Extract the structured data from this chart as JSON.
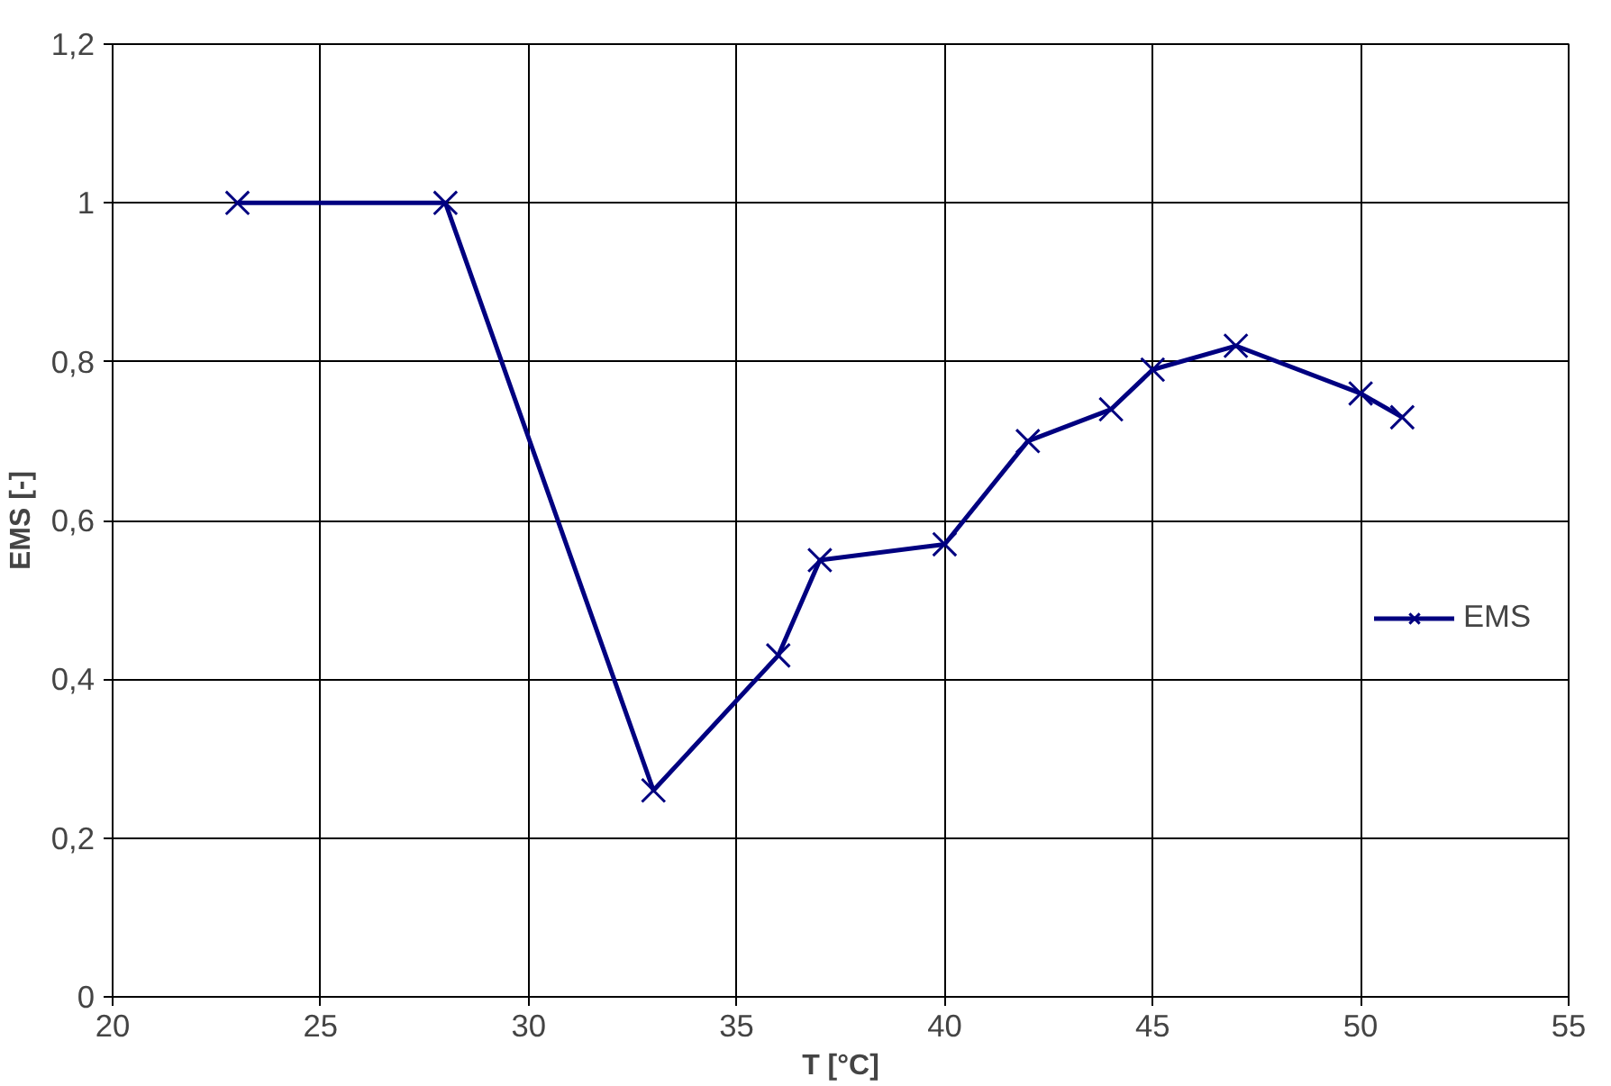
{
  "chart_data": {
    "type": "line",
    "xlabel": "T [°C]",
    "ylabel": "EMS [-]",
    "x": [
      23,
      28,
      33,
      36,
      37,
      40,
      42,
      44,
      45,
      47,
      50,
      51
    ],
    "series": [
      {
        "name": "EMS",
        "color": "#000080",
        "values": [
          1.0,
          1.0,
          0.26,
          0.43,
          0.55,
          0.57,
          0.7,
          0.74,
          0.79,
          0.82,
          0.76,
          0.73
        ]
      }
    ],
    "xlim": [
      20,
      55
    ],
    "xticks": [
      20,
      25,
      30,
      35,
      40,
      45,
      50,
      55
    ],
    "ylim": [
      0,
      1.2
    ],
    "yticks": [
      0,
      {
        "value": 0.2,
        "label": "0,2"
      },
      {
        "value": 0.4,
        "label": "0,4"
      },
      {
        "value": 0.6,
        "label": "0,6"
      },
      {
        "value": 0.8,
        "label": "0,8"
      },
      1,
      {
        "value": 1.2,
        "label": "1,2"
      }
    ],
    "grid": true,
    "legend": "right",
    "marker": "cross",
    "line_style": "solid"
  }
}
